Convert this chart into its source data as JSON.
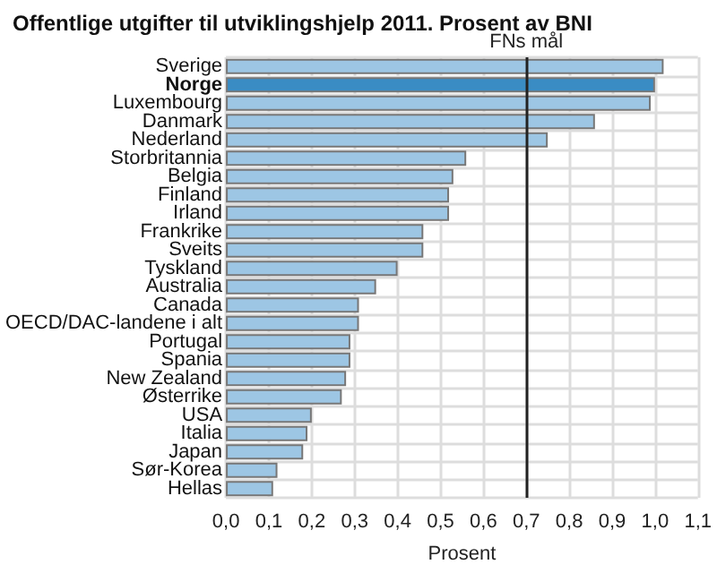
{
  "chart_data": {
    "type": "bar",
    "orientation": "horizontal",
    "title": "Offentlige utgifter til utviklingshjelp 2011. Prosent av BNI",
    "xlabel": "Prosent",
    "categories": [
      "Sverige",
      "Norge",
      "Luxembourg",
      "Danmark",
      "Nederland",
      "Storbritannia",
      "Belgia",
      "Finland",
      "Irland",
      "Frankrike",
      "Sveits",
      "Tyskland",
      "Australia",
      "Canada",
      "OECD/DAC-landene i alt",
      "Portugal",
      "Spania",
      "New Zealand",
      "Østerrike",
      "USA",
      "Italia",
      "Japan",
      "Sør-Korea",
      "Hellas"
    ],
    "values": [
      1.02,
      1.0,
      0.99,
      0.86,
      0.75,
      0.56,
      0.53,
      0.52,
      0.52,
      0.46,
      0.46,
      0.4,
      0.35,
      0.31,
      0.31,
      0.29,
      0.29,
      0.28,
      0.27,
      0.2,
      0.19,
      0.18,
      0.12,
      0.11
    ],
    "colors": [
      "#9dc6e4",
      "#3a8cc4",
      "#9dc6e4",
      "#9dc6e4",
      "#9dc6e4",
      "#9dc6e4",
      "#9dc6e4",
      "#9dc6e4",
      "#9dc6e4",
      "#9dc6e4",
      "#9dc6e4",
      "#9dc6e4",
      "#9dc6e4",
      "#9dc6e4",
      "#9dc6e4",
      "#9dc6e4",
      "#9dc6e4",
      "#9dc6e4",
      "#9dc6e4",
      "#9dc6e4",
      "#9dc6e4",
      "#9dc6e4",
      "#9dc6e4",
      "#9dc6e4"
    ],
    "xlim": [
      0,
      1.1
    ],
    "xticks": [
      {
        "value": 0,
        "label": "0,0"
      },
      {
        "value": 0.1,
        "label": "0,1"
      },
      {
        "value": 0.2,
        "label": "0,2"
      },
      {
        "value": 0.3,
        "label": "0,3"
      },
      {
        "value": 0.4,
        "label": "0,4"
      },
      {
        "value": 0.5,
        "label": "0,5"
      },
      {
        "value": 0.6,
        "label": "0,6"
      },
      {
        "value": 0.7,
        "label": "0,7"
      },
      {
        "value": 0.8,
        "label": "0,8"
      },
      {
        "value": 0.9,
        "label": "0,9"
      },
      {
        "value": 1.0,
        "label": "1,0"
      },
      {
        "value": 1.1,
        "label": "1,1"
      }
    ],
    "ref_lines": [
      {
        "axis": "x",
        "value": 0.7,
        "label": "FNs mål",
        "color": "#222222"
      }
    ],
    "grid": true
  }
}
